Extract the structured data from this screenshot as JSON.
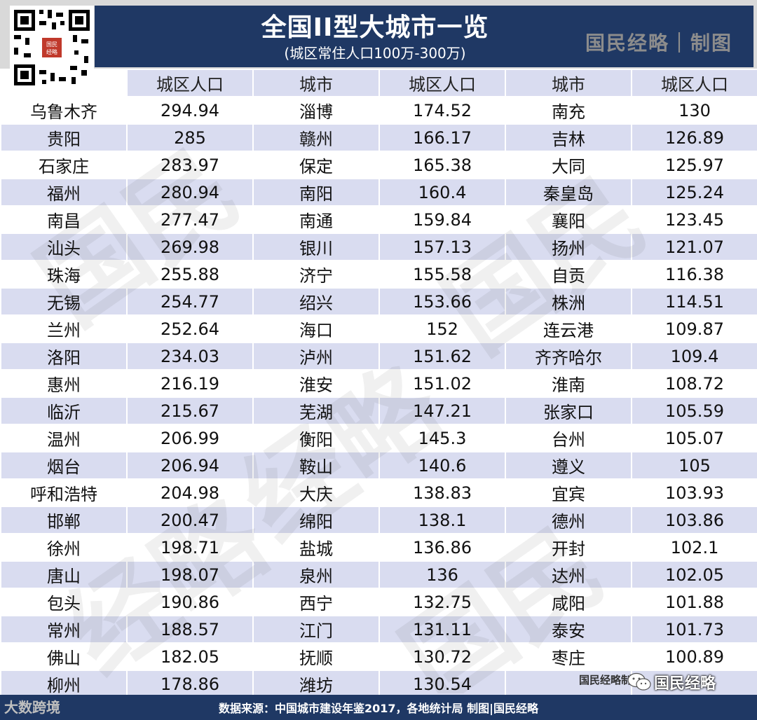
{
  "header": {
    "title": "全国II型大城市一览",
    "subtitle": "(城区常住人口100万-300万)",
    "brand": "国民经略｜制图",
    "qr_badge": "国民经略"
  },
  "table": {
    "columns": [
      "",
      "城区人口",
      "城市",
      "城区人口",
      "城市",
      "城区人口"
    ],
    "rows": [
      [
        "乌鲁木齐",
        "294.94",
        "淄博",
        "174.52",
        "南充",
        "130"
      ],
      [
        "贵阳",
        "285",
        "赣州",
        "166.17",
        "吉林",
        "126.89"
      ],
      [
        "石家庄",
        "283.97",
        "保定",
        "165.38",
        "大同",
        "125.97"
      ],
      [
        "福州",
        "280.94",
        "南阳",
        "160.4",
        "秦皇岛",
        "125.24"
      ],
      [
        "南昌",
        "277.47",
        "南通",
        "159.84",
        "襄阳",
        "123.45"
      ],
      [
        "汕头",
        "269.98",
        "银川",
        "157.13",
        "扬州",
        "121.07"
      ],
      [
        "珠海",
        "255.88",
        "济宁",
        "155.58",
        "自贡",
        "116.38"
      ],
      [
        "无锡",
        "254.77",
        "绍兴",
        "153.66",
        "株洲",
        "114.51"
      ],
      [
        "兰州",
        "252.64",
        "海口",
        "152",
        "连云港",
        "109.87"
      ],
      [
        "洛阳",
        "234.03",
        "泸州",
        "151.62",
        "齐齐哈尔",
        "109.4"
      ],
      [
        "惠州",
        "216.19",
        "淮安",
        "151.02",
        "淮南",
        "108.72"
      ],
      [
        "临沂",
        "215.67",
        "芜湖",
        "147.21",
        "张家口",
        "105.59"
      ],
      [
        "温州",
        "206.99",
        "衡阳",
        "145.3",
        "台州",
        "105.07"
      ],
      [
        "烟台",
        "206.94",
        "鞍山",
        "140.6",
        "遵义",
        "105"
      ],
      [
        "呼和浩特",
        "204.98",
        "大庆",
        "138.83",
        "宜宾",
        "103.93"
      ],
      [
        "邯郸",
        "200.47",
        "绵阳",
        "138.1",
        "德州",
        "103.86"
      ],
      [
        "徐州",
        "198.71",
        "盐城",
        "136.86",
        "开封",
        "102.1"
      ],
      [
        "唐山",
        "198.07",
        "泉州",
        "136",
        "达州",
        "102.05"
      ],
      [
        "包头",
        "190.86",
        "西宁",
        "132.75",
        "咸阳",
        "101.88"
      ],
      [
        "常州",
        "188.57",
        "江门",
        "131.11",
        "泰安",
        "101.73"
      ],
      [
        "佛山",
        "182.05",
        "抚顺",
        "130.72",
        "枣庄",
        "100.89"
      ],
      [
        "柳州",
        "178.86",
        "潍坊",
        "130.54",
        "",
        ""
      ]
    ]
  },
  "overlay": {
    "last_cell_brand": "国民经略制图",
    "wechat_label": "国民经略",
    "bottom_left_logo": "大数跨境"
  },
  "footer": {
    "source": "数据来源：中国城市建设年鉴2017，各地统计局 制图|国民经略"
  },
  "colors": {
    "navy": "#1f3864",
    "stripe": "#d9dcf0",
    "brand_gray": "#8c8c8c"
  }
}
